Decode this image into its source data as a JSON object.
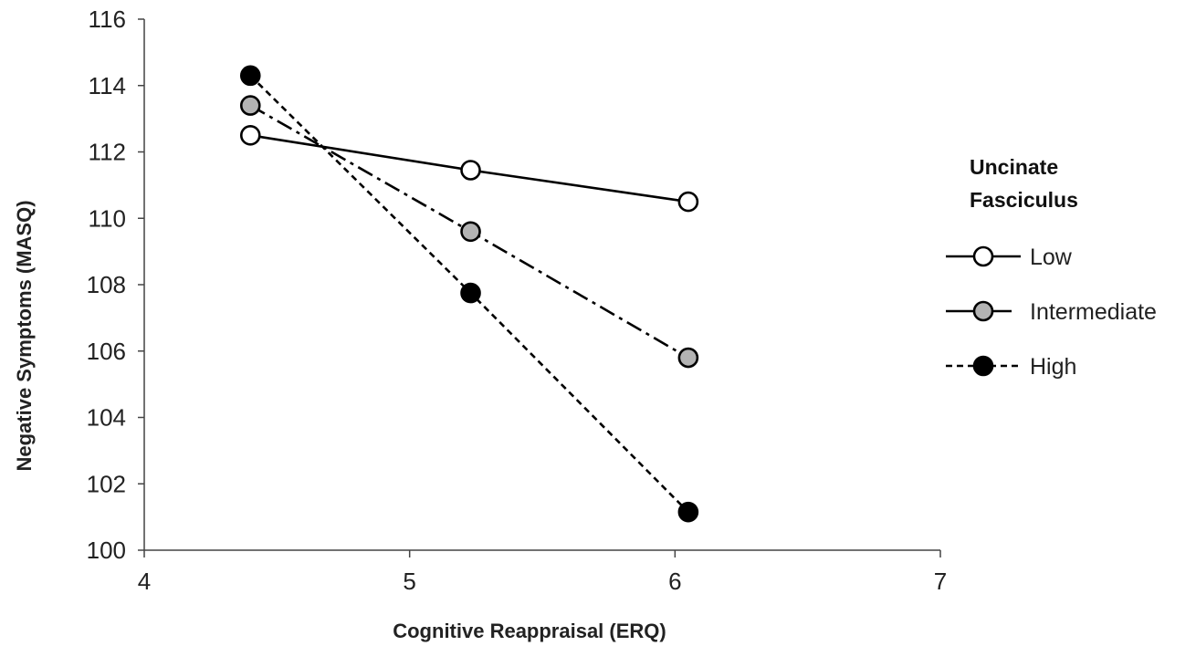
{
  "chart_data": {
    "type": "line",
    "xlabel": "Cognitive Reappraisal (ERQ)",
    "ylabel": "Negative Symptoms (MASQ)",
    "xlim": [
      4,
      7
    ],
    "ylim": [
      100,
      116
    ],
    "xticks": [
      4,
      5,
      6,
      7
    ],
    "yticks": [
      100,
      102,
      104,
      106,
      108,
      110,
      112,
      114,
      116
    ],
    "grid": false,
    "legend": {
      "title_lines": [
        "Uncinate",
        "Fasciculus"
      ],
      "position": "right"
    },
    "series": [
      {
        "name": "Low",
        "x": [
          4.4,
          5.23,
          6.05
        ],
        "y": [
          112.5,
          111.45,
          110.5
        ],
        "line_style": "solid",
        "marker_fill": "#ffffff"
      },
      {
        "name": "Intermediate",
        "x": [
          4.4,
          5.23,
          6.05
        ],
        "y": [
          113.4,
          109.6,
          105.8
        ],
        "line_style": "dashdot",
        "marker_fill": "#b3b3b3"
      },
      {
        "name": "High",
        "x": [
          4.4,
          5.23,
          6.05
        ],
        "y": [
          114.3,
          107.75,
          101.15
        ],
        "line_style": "dashed",
        "marker_fill": "#000000"
      }
    ]
  }
}
